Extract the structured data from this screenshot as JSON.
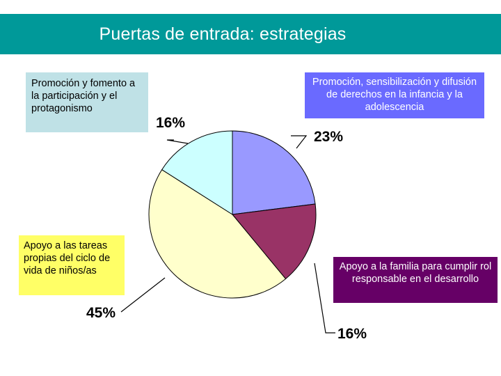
{
  "header": {
    "title": "Puertas de entrada: estrategias"
  },
  "chart_data": {
    "type": "pie",
    "title": "",
    "slices": [
      {
        "label": "Promoción, sensibilización y difusión de derechos en la infancia y la adolescencia",
        "value": 23,
        "value_label": "23%",
        "color": "#9999ff"
      },
      {
        "label": "Apoyo a la familia para cumplir rol responsable en el desarrollo",
        "value": 16,
        "value_label": "16%",
        "color": "#993366"
      },
      {
        "label": "Apoyo a las tareas propias del ciclo de vida de niños/as",
        "value": 45,
        "value_label": "45%",
        "color": "#ffffcc"
      },
      {
        "label": "Promoción y fomento a la participación y el protagonismo",
        "value": 16,
        "value_label": "16%",
        "color": "#ccffff"
      }
    ]
  }
}
